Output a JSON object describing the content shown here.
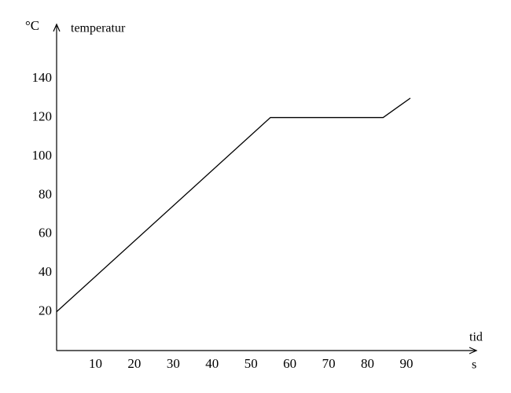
{
  "chart_data": {
    "type": "line",
    "y_label": "°C",
    "y_title": "temperatur",
    "x_title": "tid",
    "x_unit": "s",
    "x": [
      0,
      55,
      84,
      91
    ],
    "values": [
      20,
      120,
      120,
      130
    ],
    "color": "#000000",
    "xlim": [
      0,
      108
    ],
    "ylim": [
      0,
      168
    ],
    "xticks": [
      10,
      20,
      30,
      40,
      50,
      60,
      70,
      80,
      90
    ],
    "yticks": [
      20,
      40,
      60,
      80,
      100,
      120,
      140
    ],
    "grid": false
  }
}
